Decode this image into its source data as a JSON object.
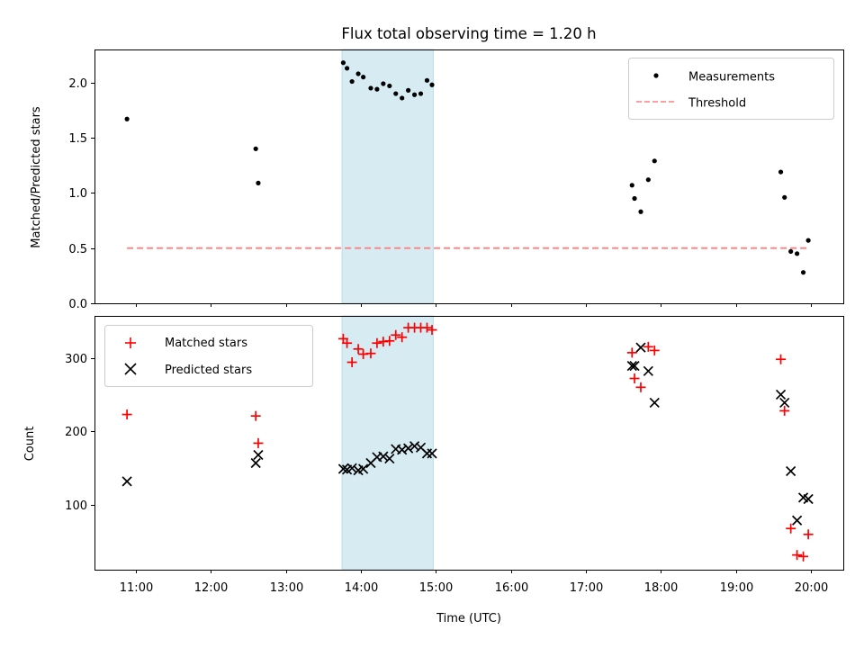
{
  "figure": {
    "title": "Flux total observing time = 1.20 h",
    "xlabel": "Time (UTC)",
    "shaded_interval": [
      "13:45",
      "14:58"
    ],
    "shade_color": "#add8e6"
  },
  "chart_data": [
    {
      "type": "scatter",
      "ylabel": "Matched/Predicted stars",
      "xlim": [
        "10:27",
        "20:26"
      ],
      "ylim": [
        0,
        2.3
      ],
      "yticks": [
        "0.0",
        "0.5",
        "1.0",
        "1.5",
        "2.0"
      ],
      "legend_position": "top-right",
      "series": [
        {
          "name": "Measurements",
          "kind": "points",
          "color": "#000000",
          "points": [
            [
              "10:53",
              1.67
            ],
            [
              "12:36",
              1.4
            ],
            [
              "12:38",
              1.09
            ],
            [
              "13:46",
              2.18
            ],
            [
              "13:49",
              2.13
            ],
            [
              "13:53",
              2.01
            ],
            [
              "13:58",
              2.08
            ],
            [
              "14:02",
              2.05
            ],
            [
              "14:08",
              1.95
            ],
            [
              "14:13",
              1.94
            ],
            [
              "14:18",
              1.99
            ],
            [
              "14:23",
              1.97
            ],
            [
              "14:28",
              1.9
            ],
            [
              "14:33",
              1.86
            ],
            [
              "14:38",
              1.93
            ],
            [
              "14:43",
              1.89
            ],
            [
              "14:48",
              1.9
            ],
            [
              "14:53",
              2.02
            ],
            [
              "14:57",
              1.98
            ],
            [
              "17:37",
              1.07
            ],
            [
              "17:39",
              0.95
            ],
            [
              "17:44",
              0.83
            ],
            [
              "17:50",
              1.12
            ],
            [
              "17:55",
              1.29
            ],
            [
              "19:36",
              1.19
            ],
            [
              "19:39",
              0.96
            ],
            [
              "19:44",
              0.47
            ],
            [
              "19:49",
              0.45
            ],
            [
              "19:54",
              0.28
            ],
            [
              "19:58",
              0.57
            ]
          ]
        },
        {
          "name": "Threshold",
          "kind": "dashed-line",
          "color": "#ff7f7f",
          "points": [
            [
              "10:53",
              0.5
            ],
            [
              "19:58",
              0.5
            ]
          ]
        }
      ]
    },
    {
      "type": "scatter",
      "ylabel": "Count",
      "xlim": [
        "10:27",
        "20:26"
      ],
      "ylim": [
        12,
        357
      ],
      "yticks": [
        "100",
        "200",
        "300"
      ],
      "xticks": [
        "11:00",
        "12:00",
        "13:00",
        "14:00",
        "15:00",
        "16:00",
        "17:00",
        "18:00",
        "19:00",
        "20:00"
      ],
      "legend_position": "top-left",
      "series": [
        {
          "name": "Matched stars",
          "kind": "plus",
          "color": "#ff0000",
          "points": [
            [
              "10:53",
              223
            ],
            [
              "12:36",
              221
            ],
            [
              "12:38",
              184
            ],
            [
              "13:46",
              326
            ],
            [
              "13:49",
              320
            ],
            [
              "13:53",
              294
            ],
            [
              "13:58",
              312
            ],
            [
              "14:02",
              305
            ],
            [
              "14:08",
              306
            ],
            [
              "14:13",
              320
            ],
            [
              "14:18",
              322
            ],
            [
              "14:23",
              323
            ],
            [
              "14:28",
              331
            ],
            [
              "14:33",
              328
            ],
            [
              "14:38",
              341
            ],
            [
              "14:43",
              341
            ],
            [
              "14:48",
              341
            ],
            [
              "14:53",
              341
            ],
            [
              "14:57",
              338
            ],
            [
              "17:37",
              307
            ],
            [
              "17:39",
              272
            ],
            [
              "17:44",
              260
            ],
            [
              "17:50",
              315
            ],
            [
              "17:55",
              310
            ],
            [
              "19:36",
              298
            ],
            [
              "19:39",
              228
            ],
            [
              "19:44",
              68
            ],
            [
              "19:49",
              32
            ],
            [
              "19:54",
              30
            ],
            [
              "19:58",
              60
            ]
          ]
        },
        {
          "name": "Predicted stars",
          "kind": "x",
          "color": "#000000",
          "points": [
            [
              "10:53",
              132
            ],
            [
              "12:36",
              157
            ],
            [
              "12:38",
              168
            ],
            [
              "13:46",
              149
            ],
            [
              "13:49",
              148
            ],
            [
              "13:53",
              150
            ],
            [
              "13:58",
              147
            ],
            [
              "14:02",
              149
            ],
            [
              "14:08",
              157
            ],
            [
              "14:13",
              165
            ],
            [
              "14:18",
              166
            ],
            [
              "14:23",
              163
            ],
            [
              "14:28",
              176
            ],
            [
              "14:33",
              175
            ],
            [
              "14:38",
              177
            ],
            [
              "14:43",
              180
            ],
            [
              "14:48",
              178
            ],
            [
              "14:53",
              170
            ],
            [
              "14:57",
              170
            ],
            [
              "17:37",
              289
            ],
            [
              "17:39",
              289
            ],
            [
              "17:44",
              314
            ],
            [
              "17:50",
              282
            ],
            [
              "17:55",
              239
            ],
            [
              "19:36",
              250
            ],
            [
              "19:39",
              239
            ],
            [
              "19:44",
              146
            ],
            [
              "19:49",
              79
            ],
            [
              "19:54",
              110
            ],
            [
              "19:58",
              108
            ]
          ]
        }
      ]
    }
  ]
}
